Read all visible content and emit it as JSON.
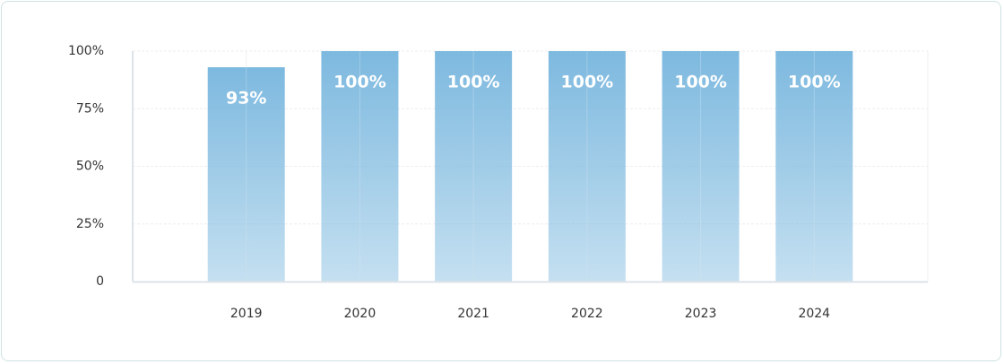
{
  "chart_data": {
    "type": "bar",
    "categories": [
      "2019",
      "2020",
      "2021",
      "2022",
      "2023",
      "2024"
    ],
    "values": [
      93,
      100,
      100,
      100,
      100,
      100
    ],
    "value_labels": [
      "93%",
      "100%",
      "100%",
      "100%",
      "100%",
      "100%"
    ],
    "color": "#7db9df",
    "ylim": [
      0,
      100
    ],
    "yticks": [
      0,
      {
        "value": 25,
        "label": "25%"
      },
      {
        "value": 50,
        "label": "50%"
      },
      {
        "value": 75,
        "label": "75%"
      },
      {
        "value": 100,
        "label": "100%"
      }
    ],
    "grid": true
  }
}
